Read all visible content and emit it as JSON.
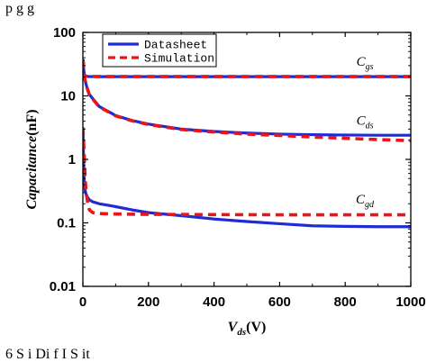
{
  "caption_top": "p     g     g             ",
  "caption_bottom": "6   S        i   Di         f I       S      it",
  "chart_data": {
    "type": "line",
    "title": "",
    "xlabel": {
      "main": "V",
      "sub": "ds",
      "unit": "(V)"
    },
    "ylabel": {
      "main": "Capacitance",
      "unit": "(nF)"
    },
    "xlim": [
      0,
      1000
    ],
    "ylim": [
      0.01,
      100
    ],
    "yscale": "log",
    "x_ticks": [
      0,
      200,
      400,
      600,
      800,
      1000
    ],
    "y_ticks": [
      {
        "value": 0.01,
        "label": "0.01"
      },
      {
        "value": 0.1,
        "label": "0.1"
      },
      {
        "value": 1,
        "label": "1"
      },
      {
        "value": 10,
        "label": "10"
      },
      {
        "value": 100,
        "label": "100"
      }
    ],
    "legend": {
      "position": "top-left",
      "entries": [
        {
          "label": "Datasheet",
          "color": "#1f2bd6",
          "style": "solid"
        },
        {
          "label": "Simulation",
          "color": "#e8151b",
          "style": "dashed"
        }
      ]
    },
    "annotations": [
      {
        "main": "C",
        "sub": "gs",
        "x": 860,
        "y": 28
      },
      {
        "main": "C",
        "sub": "ds",
        "x": 860,
        "y": 3.3
      },
      {
        "main": "C",
        "sub": "gd",
        "x": 860,
        "y": 0.19
      }
    ],
    "series": [
      {
        "group": "Datasheet",
        "curve": "Cgs",
        "color": "#1f2bd6",
        "style": "solid",
        "x": [
          0,
          2,
          5,
          10,
          20,
          50,
          100,
          200,
          400,
          600,
          800,
          1000
        ],
        "y": [
          22,
          21,
          20.6,
          20.3,
          20.2,
          20.1,
          20.1,
          20.1,
          20.1,
          20.1,
          20.1,
          20.1
        ]
      },
      {
        "group": "Simulation",
        "curve": "Cgs",
        "color": "#e8151b",
        "style": "dashed",
        "x": [
          0,
          2,
          5,
          10,
          20,
          50,
          100,
          200,
          400,
          600,
          800,
          1000
        ],
        "y": [
          25,
          22,
          21,
          20.5,
          20.3,
          20.2,
          20.2,
          20.2,
          20.2,
          20.2,
          20.2,
          20.2
        ]
      },
      {
        "group": "Datasheet",
        "curve": "Cds",
        "color": "#1f2bd6",
        "style": "solid",
        "x": [
          1,
          2,
          5,
          10,
          20,
          50,
          100,
          150,
          200,
          300,
          400,
          500,
          600,
          700,
          800,
          900,
          1000
        ],
        "y": [
          38,
          28,
          20,
          15,
          10.5,
          6.8,
          4.9,
          4.1,
          3.6,
          3.0,
          2.75,
          2.6,
          2.5,
          2.45,
          2.42,
          2.4,
          2.4
        ]
      },
      {
        "group": "Simulation",
        "curve": "Cds",
        "color": "#e8151b",
        "style": "dashed",
        "x": [
          1,
          2,
          5,
          10,
          20,
          50,
          100,
          150,
          200,
          300,
          400,
          500,
          600,
          700,
          800,
          900,
          1000
        ],
        "y": [
          36,
          27,
          19.5,
          14.8,
          10.3,
          6.7,
          4.85,
          4.05,
          3.55,
          2.95,
          2.7,
          2.5,
          2.38,
          2.25,
          2.15,
          2.05,
          1.97
        ]
      },
      {
        "group": "Datasheet",
        "curve": "Cgd",
        "color": "#1f2bd6",
        "style": "solid",
        "x": [
          0,
          1,
          2,
          3,
          5,
          7,
          10,
          15,
          20,
          30,
          50,
          75,
          100,
          150,
          200,
          300,
          400,
          500,
          600,
          700,
          800,
          900,
          1000
        ],
        "y": [
          3.0,
          2.0,
          1.0,
          0.6,
          0.4,
          0.32,
          0.28,
          0.25,
          0.23,
          0.215,
          0.2,
          0.19,
          0.18,
          0.16,
          0.145,
          0.13,
          0.115,
          0.105,
          0.097,
          0.09,
          0.088,
          0.087,
          0.087
        ]
      },
      {
        "group": "Simulation",
        "curve": "Cgd",
        "color": "#e8151b",
        "style": "dashed",
        "x": [
          0,
          1,
          2,
          3,
          5,
          7,
          10,
          15,
          20,
          30,
          50,
          100,
          200,
          400,
          600,
          800,
          1000
        ],
        "y": [
          3.2,
          2.5,
          2.0,
          1.5,
          0.9,
          0.5,
          0.3,
          0.2,
          0.16,
          0.145,
          0.14,
          0.138,
          0.136,
          0.135,
          0.134,
          0.134,
          0.134
        ]
      }
    ]
  }
}
